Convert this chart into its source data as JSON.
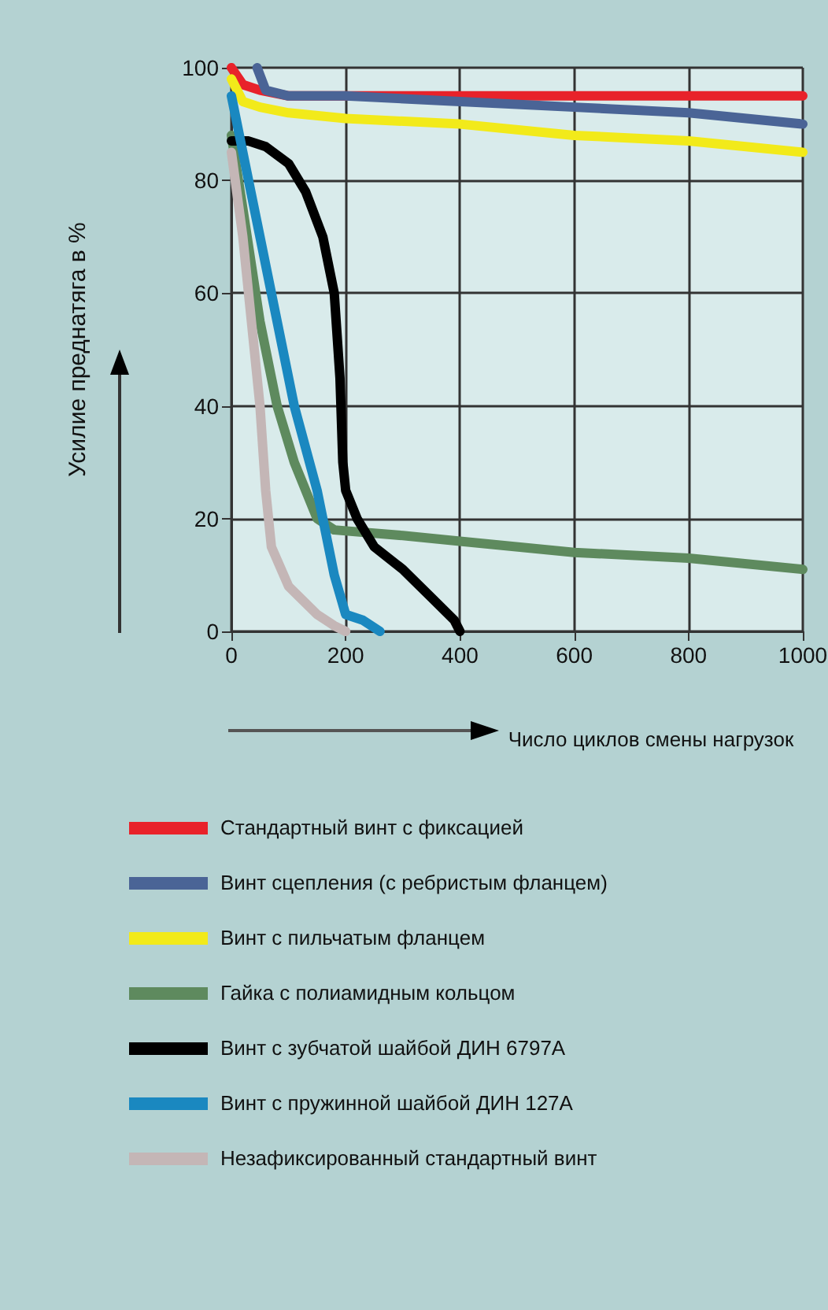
{
  "chart_data": {
    "type": "line",
    "xlabel": "Число циклов смены нагрузок",
    "ylabel": "Усилие преднатяга в %",
    "xlim": [
      0,
      1000
    ],
    "xticks": [
      0,
      200,
      400,
      600,
      800,
      1000
    ],
    "ylim": [
      0,
      100
    ],
    "yticks": [
      0,
      20,
      40,
      60,
      80,
      100
    ],
    "grid": true,
    "legend": "bottom",
    "marker": "none",
    "line_style": "solid",
    "series": [
      {
        "name": "Стандартный винт с фиксацией",
        "color": "#e8222a",
        "x": [
          0,
          20,
          50,
          100,
          400,
          1000
        ],
        "values": [
          100,
          97,
          96,
          95,
          95,
          95
        ]
      },
      {
        "name": "Винт сцепления (с ребристым фланцем)",
        "color": "#4a6496",
        "x": [
          45,
          60,
          100,
          200,
          400,
          600,
          800,
          1000
        ],
        "values": [
          100,
          96,
          95,
          95,
          94,
          93,
          92,
          90
        ]
      },
      {
        "name": "Винт с пильчатым фланцем",
        "color": "#f2ea1a",
        "x": [
          0,
          20,
          50,
          100,
          200,
          400,
          600,
          800,
          1000
        ],
        "values": [
          98,
          94,
          93,
          92,
          91,
          90,
          88,
          87,
          85
        ]
      },
      {
        "name": "Гайка с полиамидным кольцом",
        "color": "#5e8a5e",
        "x": [
          0,
          20,
          50,
          80,
          110,
          150,
          180,
          300,
          400,
          600,
          800,
          1000
        ],
        "values": [
          88,
          75,
          55,
          40,
          30,
          20,
          18,
          17,
          16,
          14,
          13,
          11
        ]
      },
      {
        "name": "Винт с зубчатой шайбой ДИН 6797A",
        "color": "#000000",
        "x": [
          0,
          30,
          60,
          100,
          130,
          160,
          180,
          190,
          195,
          200,
          220,
          250,
          300,
          350,
          390,
          400
        ],
        "values": [
          87,
          87,
          86,
          83,
          78,
          70,
          60,
          45,
          30,
          25,
          20,
          15,
          11,
          6,
          2,
          0
        ]
      },
      {
        "name": "Винт с пружинной шайбой ДИН 127A",
        "color": "#1a88c0",
        "x": [
          0,
          20,
          50,
          80,
          110,
          150,
          180,
          200,
          230,
          260
        ],
        "values": [
          95,
          85,
          70,
          55,
          40,
          25,
          10,
          3,
          2,
          0
        ]
      },
      {
        "name": "Незафиксированный стандартный винт",
        "color": "#c4b6b6",
        "x": [
          0,
          20,
          40,
          50,
          60,
          70,
          100,
          150,
          180,
          200
        ],
        "values": [
          85,
          70,
          50,
          40,
          25,
          15,
          8,
          3,
          1,
          0
        ]
      }
    ]
  }
}
